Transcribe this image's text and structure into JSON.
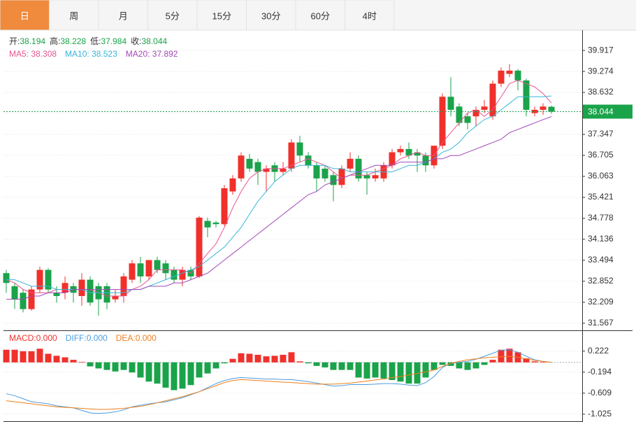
{
  "tabs": {
    "items": [
      "日",
      "周",
      "月",
      "5分",
      "15分",
      "30分",
      "60分",
      "4时"
    ],
    "active": 0
  },
  "chart_data": [
    {
      "type": "candlestick",
      "legend_ohlc": [
        {
          "label": "开:",
          "value": "38.194"
        },
        {
          "label": "高:",
          "value": "38.228"
        },
        {
          "label": "低:",
          "value": "37.984"
        },
        {
          "label": "收:",
          "value": "38.044"
        }
      ],
      "up_color": "#f0302b",
      "down_color": "#1aa34a",
      "open": [
        33.1,
        32.7,
        32.5,
        32.0,
        32.6,
        33.2,
        32.5,
        32.5,
        32.7,
        32.4,
        32.9,
        32.7,
        32.7,
        32.3,
        32.4,
        32.9,
        33.4,
        33.0,
        33.5,
        33.4,
        33.2,
        32.9,
        33.2,
        33.0,
        34.7,
        34.65,
        34.6,
        35.6,
        36.0,
        36.6,
        36.5,
        36.2,
        36.4,
        36.2,
        36.3,
        37.1,
        36.7,
        36.4,
        36.3,
        36.1,
        35.8,
        36.3,
        36.6,
        36.1,
        36.0,
        36.0,
        36.4,
        36.8,
        36.9,
        36.8,
        36.7,
        36.4,
        37.0,
        38.5,
        38.2,
        37.9,
        37.9,
        38.1,
        37.9,
        38.9,
        39.2,
        39.3,
        39.0,
        38.0,
        38.1,
        38.194
      ],
      "high": [
        33.2,
        32.8,
        32.6,
        32.7,
        33.3,
        33.25,
        32.7,
        33.0,
        32.8,
        33.1,
        33.0,
        32.8,
        32.8,
        32.6,
        33.1,
        33.5,
        33.6,
        33.5,
        33.6,
        33.5,
        33.3,
        33.3,
        33.3,
        34.85,
        34.8,
        34.7,
        35.8,
        36.1,
        36.8,
        36.75,
        36.6,
        36.4,
        36.5,
        36.5,
        37.2,
        37.3,
        36.8,
        36.5,
        36.4,
        36.2,
        36.4,
        36.8,
        36.7,
        36.2,
        36.3,
        36.5,
        36.9,
        37.0,
        37.1,
        36.9,
        36.8,
        37.0,
        38.6,
        39.1,
        38.3,
        38.0,
        38.2,
        38.4,
        39.0,
        39.4,
        39.5,
        39.35,
        39.05,
        38.2,
        38.3,
        38.228
      ],
      "low": [
        32.5,
        32.0,
        31.9,
        31.95,
        32.5,
        32.5,
        32.2,
        32.3,
        32.2,
        32.1,
        32.1,
        31.8,
        32.0,
        32.2,
        32.2,
        32.8,
        32.8,
        32.9,
        33.1,
        32.9,
        32.8,
        32.7,
        32.9,
        32.95,
        34.2,
        34.5,
        34.55,
        35.5,
        35.9,
        36.2,
        35.8,
        35.6,
        35.9,
        36.1,
        36.2,
        36.5,
        36.3,
        35.6,
        35.9,
        35.3,
        35.7,
        36.2,
        35.9,
        35.5,
        35.9,
        35.9,
        36.3,
        36.7,
        36.6,
        36.2,
        36.2,
        36.3,
        36.9,
        37.9,
        37.6,
        37.5,
        37.6,
        38.0,
        37.8,
        38.8,
        39.1,
        38.7,
        37.9,
        37.9,
        37.95,
        37.984
      ],
      "close": [
        32.8,
        32.3,
        32.0,
        32.6,
        33.2,
        32.6,
        32.4,
        32.8,
        32.5,
        32.9,
        32.2,
        32.3,
        32.2,
        32.4,
        33.0,
        33.4,
        33.0,
        33.5,
        33.2,
        33.1,
        32.9,
        33.2,
        33.0,
        34.8,
        34.5,
        34.6,
        35.7,
        36.0,
        36.7,
        36.3,
        36.2,
        36.3,
        36.2,
        36.3,
        37.1,
        36.7,
        36.4,
        36.0,
        36.0,
        35.8,
        36.3,
        36.6,
        36.0,
        36.0,
        36.1,
        36.4,
        36.8,
        36.9,
        36.7,
        36.7,
        36.4,
        37.0,
        38.5,
        38.1,
        37.7,
        37.7,
        38.1,
        38.2,
        38.9,
        39.3,
        39.3,
        39.0,
        38.1,
        38.1,
        38.2,
        38.044
      ],
      "series": [
        {
          "name": "MA5",
          "legend": "MA5: 38.308",
          "color": "#e8548f",
          "values": [
            32.9,
            32.8,
            32.6,
            32.5,
            32.5,
            32.5,
            32.6,
            32.6,
            32.6,
            32.6,
            32.6,
            32.5,
            32.4,
            32.4,
            32.4,
            32.6,
            32.7,
            32.9,
            33.2,
            33.2,
            33.2,
            33.2,
            33.1,
            33.4,
            33.7,
            34.0,
            34.5,
            35.1,
            35.6,
            36.0,
            36.2,
            36.3,
            36.3,
            36.3,
            36.4,
            36.5,
            36.6,
            36.5,
            36.4,
            36.2,
            36.0,
            36.1,
            36.1,
            36.1,
            36.2,
            36.3,
            36.4,
            36.6,
            36.7,
            36.8,
            36.7,
            36.7,
            37.1,
            37.4,
            37.7,
            38.0,
            38.1,
            37.9,
            38.1,
            38.5,
            38.9,
            39.0,
            38.9,
            38.8,
            38.6,
            38.308
          ]
        },
        {
          "name": "MA10",
          "legend": "MA10: 38.523",
          "color": "#36b7d9",
          "values": [
            32.9,
            32.9,
            32.8,
            32.7,
            32.7,
            32.7,
            32.6,
            32.6,
            32.6,
            32.6,
            32.5,
            32.5,
            32.5,
            32.5,
            32.5,
            32.6,
            32.6,
            32.7,
            32.8,
            32.9,
            33.0,
            33.1,
            33.2,
            33.3,
            33.5,
            33.7,
            33.9,
            34.2,
            34.5,
            34.9,
            35.3,
            35.6,
            35.9,
            36.1,
            36.3,
            36.4,
            36.4,
            36.4,
            36.4,
            36.3,
            36.3,
            36.2,
            36.2,
            36.2,
            36.2,
            36.2,
            36.2,
            36.3,
            36.4,
            36.4,
            36.5,
            36.6,
            36.8,
            36.9,
            37.1,
            37.4,
            37.6,
            37.8,
            37.9,
            38.1,
            38.3,
            38.5,
            38.5,
            38.5,
            38.5,
            38.523
          ]
        },
        {
          "name": "MA20",
          "legend": "MA20: 37.892",
          "color": "#a347b8",
          "values": [
            32.3,
            32.3,
            32.3,
            32.4,
            32.4,
            32.5,
            32.5,
            32.5,
            32.6,
            32.6,
            32.6,
            32.6,
            32.6,
            32.6,
            32.6,
            32.6,
            32.6,
            32.7,
            32.7,
            32.7,
            32.8,
            32.8,
            32.9,
            33.0,
            33.1,
            33.3,
            33.5,
            33.7,
            33.9,
            34.1,
            34.3,
            34.5,
            34.7,
            34.9,
            35.1,
            35.3,
            35.5,
            35.6,
            35.8,
            35.9,
            36.0,
            36.1,
            36.2,
            36.3,
            36.4,
            36.4,
            36.4,
            36.5,
            36.5,
            36.5,
            36.5,
            36.6,
            36.6,
            36.7,
            36.7,
            36.8,
            36.9,
            37.0,
            37.1,
            37.2,
            37.4,
            37.5,
            37.6,
            37.7,
            37.8,
            37.892
          ]
        }
      ],
      "ylim": [
        31.35,
        40.54
      ],
      "yticks": [
        39.917,
        39.274,
        38.632,
        37.989,
        37.347,
        36.705,
        36.063,
        35.421,
        34.778,
        34.136,
        33.494,
        32.852,
        32.209,
        31.567
      ],
      "last_price": 38.044,
      "grid": true
    },
    {
      "type": "macd",
      "legend": [
        {
          "text": "MACD:0.000",
          "color": "#f0302b"
        },
        {
          "text": "DIFF:0.000",
          "color": "#4a9de0"
        },
        {
          "text": "DEA:0.000",
          "color": "#f07f1a"
        }
      ],
      "histogram": [
        0.25,
        0.25,
        0.22,
        0.22,
        0.27,
        0.17,
        0.13,
        0.1,
        0.05,
        0.01,
        -0.08,
        -0.12,
        -0.15,
        -0.18,
        -0.15,
        -0.2,
        -0.3,
        -0.38,
        -0.42,
        -0.5,
        -0.55,
        -0.52,
        -0.45,
        -0.3,
        -0.22,
        -0.12,
        -0.02,
        0.07,
        0.18,
        0.17,
        0.15,
        0.12,
        0.13,
        0.15,
        0.2,
        0.02,
        -0.02,
        -0.07,
        -0.1,
        -0.15,
        -0.15,
        -0.15,
        -0.3,
        -0.32,
        -0.3,
        -0.32,
        -0.35,
        -0.38,
        -0.42,
        -0.42,
        -0.3,
        -0.15,
        -0.05,
        -0.07,
        -0.12,
        -0.15,
        -0.12,
        -0.05,
        0.05,
        0.25,
        0.27,
        0.2,
        0.08,
        0.02,
        0.01,
        0.0
      ],
      "series": [
        {
          "name": "DIFF",
          "color": "#4a9de0",
          "values": [
            -0.62,
            -0.66,
            -0.72,
            -0.78,
            -0.8,
            -0.82,
            -0.86,
            -0.88,
            -0.9,
            -0.95,
            -1.0,
            -1.01,
            -1.0,
            -0.98,
            -0.94,
            -0.88,
            -0.85,
            -0.82,
            -0.8,
            -0.78,
            -0.74,
            -0.7,
            -0.64,
            -0.58,
            -0.5,
            -0.42,
            -0.36,
            -0.32,
            -0.3,
            -0.31,
            -0.32,
            -0.33,
            -0.33,
            -0.34,
            -0.34,
            -0.36,
            -0.38,
            -0.41,
            -0.44,
            -0.47,
            -0.46,
            -0.44,
            -0.44,
            -0.44,
            -0.43,
            -0.42,
            -0.42,
            -0.43,
            -0.45,
            -0.46,
            -0.4,
            -0.28,
            -0.1,
            -0.02,
            0.0,
            0.02,
            0.06,
            0.12,
            0.18,
            0.24,
            0.25,
            0.2,
            0.12,
            0.05,
            0.02,
            0.0
          ]
        },
        {
          "name": "DEA",
          "color": "#f07f1a",
          "values": [
            -0.76,
            -0.78,
            -0.8,
            -0.82,
            -0.84,
            -0.86,
            -0.88,
            -0.89,
            -0.9,
            -0.91,
            -0.92,
            -0.93,
            -0.93,
            -0.92,
            -0.91,
            -0.89,
            -0.87,
            -0.84,
            -0.8,
            -0.76,
            -0.72,
            -0.68,
            -0.63,
            -0.58,
            -0.52,
            -0.46,
            -0.4,
            -0.36,
            -0.34,
            -0.35,
            -0.36,
            -0.37,
            -0.38,
            -0.39,
            -0.4,
            -0.41,
            -0.42,
            -0.43,
            -0.43,
            -0.43,
            -0.42,
            -0.41,
            -0.39,
            -0.37,
            -0.35,
            -0.33,
            -0.3,
            -0.28,
            -0.25,
            -0.22,
            -0.19,
            -0.15,
            -0.08,
            -0.02,
            0.02,
            0.05,
            0.07,
            0.09,
            0.1,
            0.11,
            0.12,
            0.1,
            0.07,
            0.04,
            0.02,
            0.0
          ]
        }
      ],
      "ylim": [
        -1.18,
        0.62
      ],
      "yticks": [
        0.222,
        -0.194,
        -0.609,
        -1.025
      ]
    }
  ]
}
